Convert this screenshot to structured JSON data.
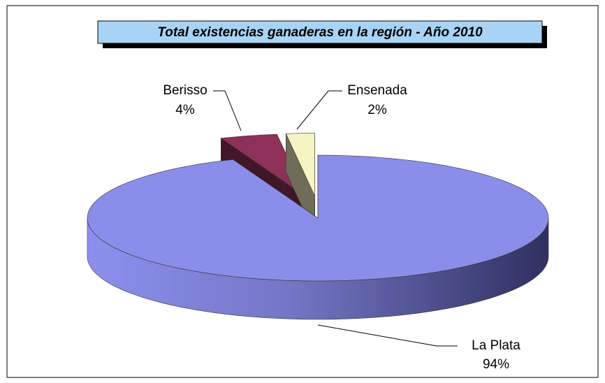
{
  "chart_data": {
    "type": "pie",
    "title": "Total existencias  ganaderas  en la región - Año 2010",
    "categories": [
      "La Plata",
      "Berisso",
      "Ensenada"
    ],
    "values": [
      94,
      4,
      2
    ],
    "value_labels": [
      "94%",
      "4%",
      "2%"
    ],
    "colors": [
      "#8b8ee8",
      "#8e3158",
      "#f6f3c4"
    ]
  }
}
